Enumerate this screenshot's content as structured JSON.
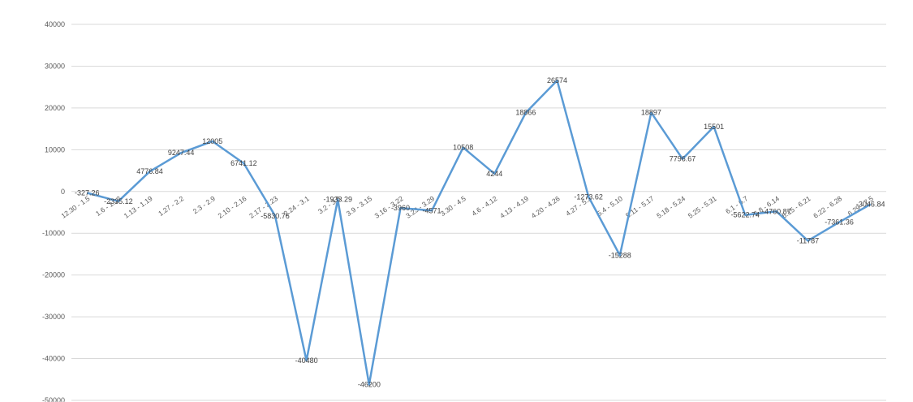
{
  "chart_data": {
    "type": "line",
    "title": "",
    "xlabel": "",
    "ylabel": "",
    "ylim": [
      -50000,
      40000
    ],
    "yticks": [
      40000,
      30000,
      20000,
      10000,
      0,
      -10000,
      -20000,
      -30000,
      -40000,
      -50000
    ],
    "grid": true,
    "legend": "none",
    "line_color": "#5b9bd5",
    "categories": [
      "12.30 - 1.5",
      "1.6 - 1.12",
      "1.13 - 1.19",
      "1.27 - 2.2",
      "2.3 - 2.9",
      "2.10 - 2.16",
      "2.17 - 2.23",
      "2.24 - 3.1",
      "3.2 - 3.8",
      "3.9 - 3.15",
      "3.16 - 3.22",
      "3.23 - 3.29",
      "3.30 - 4.5",
      "4.6 - 4.12",
      "4.13 - 4.19",
      "4.20 - 4.26",
      "4.27 - 5.3",
      "5.4 - 5.10",
      "5.11 - 5.17",
      "5.18 - 5.24",
      "5.25 - 5.31",
      "6.1 - 6.7",
      "6.8 - 6.14",
      "6.15 - 6.21",
      "6.22 - 6.28",
      "6.29 - 7.5"
    ],
    "values": [
      -327.26,
      -2335.12,
      4776.84,
      9247.44,
      12005,
      6741.12,
      -5830.76,
      -40480,
      -1933.29,
      -46200,
      -3960,
      -4571,
      10508,
      4244,
      18866,
      26574,
      -1273.62,
      -15288,
      18897,
      7796.67,
      15501,
      -5622.74,
      -4760.87,
      -11787,
      -7361.36,
      -3046.84
    ],
    "data_labels": [
      "-327.26",
      "-2335.12",
      "4776.84",
      "9247.44",
      "12005",
      "6741.12",
      "-5830.76",
      "-40480",
      "-1933.29",
      "-46200",
      "-3960",
      "-4571",
      "10508",
      "4244",
      "18866",
      "26574",
      "-1273.62",
      "-15288",
      "18897",
      "7796.67",
      "15501",
      "-5622.74",
      "-4760.87",
      "-11787",
      "-7361.36",
      "-3046.84"
    ]
  }
}
